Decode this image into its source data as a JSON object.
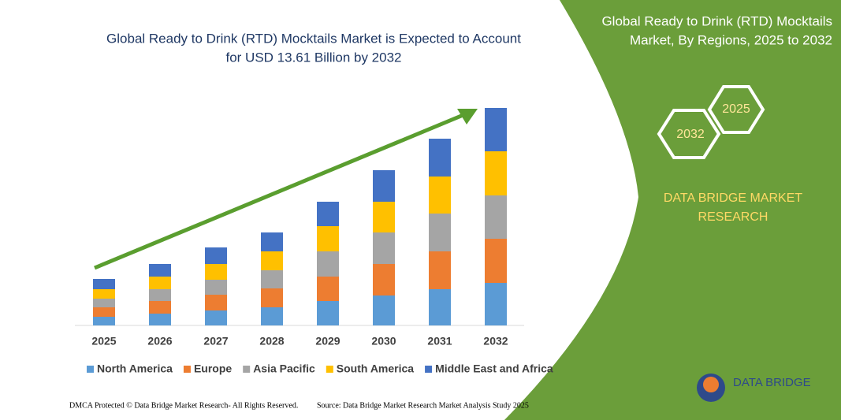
{
  "chart_data": {
    "type": "stacked-bar",
    "title": [
      "Global Ready to Drink (RTD) Mocktails Market is Expected to Account",
      "for USD 13.61 Billion by 2032"
    ],
    "categories": [
      "2025",
      "2026",
      "2027",
      "2028",
      "2029",
      "2030",
      "2031",
      "2032"
    ],
    "series": [
      {
        "name": "North America",
        "color": "#5b9bd5",
        "values": [
          11,
          15,
          19,
          23,
          31,
          38,
          46,
          54
        ]
      },
      {
        "name": "Europe",
        "color": "#ed7d31",
        "values": [
          12,
          16,
          20,
          24,
          31,
          40,
          48,
          56
        ]
      },
      {
        "name": "Asia Pacific",
        "color": "#a5a5a5",
        "values": [
          11,
          15,
          19,
          23,
          32,
          40,
          48,
          55
        ]
      },
      {
        "name": "South America",
        "color": "#ffc000",
        "values": [
          12,
          16,
          20,
          24,
          32,
          39,
          47,
          56
        ]
      },
      {
        "name": "Middle East and Africa",
        "color": "#4472c4",
        "values": [
          13,
          16,
          21,
          24,
          31,
          40,
          48,
          55
        ]
      }
    ]
  },
  "panel": {
    "title": [
      "Global Ready to Drink (RTD) Mocktails",
      "Market, By Regions, 2025 to 2032"
    ],
    "hex_start": "2025",
    "hex_end": "2032",
    "brand": [
      "DATA BRIDGE MARKET",
      "RESEARCH"
    ],
    "logo": "DATA BRIDGE"
  },
  "footer": {
    "left": "DMCA Protected © Data Bridge Market Research-  All Rights Reserved.",
    "right": "Source: Data Bridge Market Research  Market Analysis Study 2025"
  }
}
